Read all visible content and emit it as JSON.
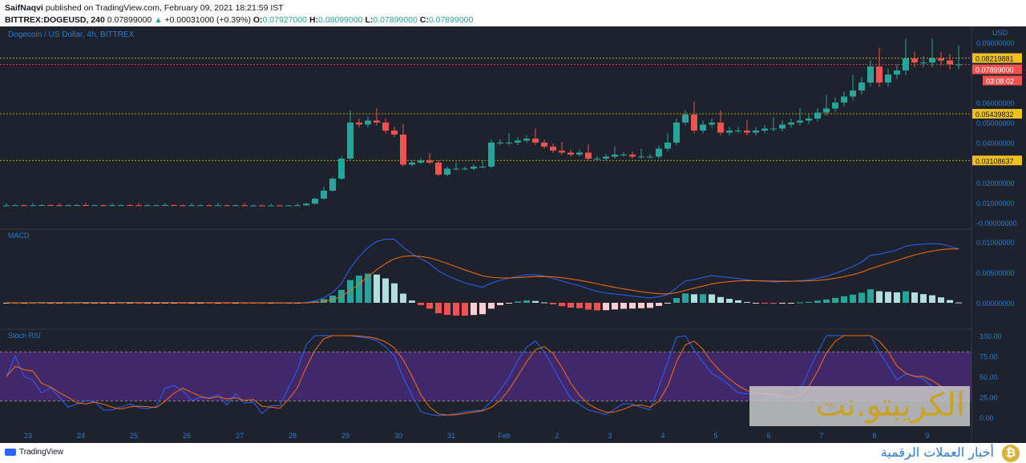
{
  "header": {
    "author": "SaifNaqvi",
    "published": " published on TradingView.com, February 09, 2021 18:21:59 IST",
    "symbol": "BITTREX:DOGEUSD, 240",
    "last": "0.07899000",
    "change": "+0.00031000 (+0.39%)",
    "o_label": "O:",
    "o": "0.07927000",
    "h_label": "H:",
    "h": "0.08099000",
    "l_label": "L:",
    "l": "0.07899000",
    "c_label": "C:",
    "c": "0.07899000"
  },
  "colors": {
    "bg": "#1e222d",
    "up": "#26a69a",
    "down": "#ef5350",
    "axis": "#2a7bd0",
    "macd": "#2962ff",
    "signal": "#ff6d00",
    "stoch_bg": "#4a2a7a",
    "hline": "#f0c020"
  },
  "footer": {
    "logo": "TradingView"
  },
  "watermark": {
    "title": "الكريبتو.نت",
    "subtitle": "أخبار العملات الرقمية"
  },
  "chart_data": {
    "type": "candlestick",
    "title": "Dogecoin / US Dollar, 4h, BITTREX",
    "currency": "USD",
    "price_ticks": [
      "0.09000000",
      "0.06000000",
      "0.05000000",
      "0.04000000",
      "0.02000000",
      "0.01000000",
      "-0.00000000"
    ],
    "price_tick_values": [
      0.09,
      0.06,
      0.05,
      0.04,
      0.02,
      0.01,
      0
    ],
    "horizontal_levels": [
      {
        "value": "0.08219881",
        "kind": "level"
      },
      {
        "value": "0.05439832",
        "kind": "level"
      },
      {
        "value": "0.03108637",
        "kind": "level"
      }
    ],
    "last_price": {
      "value": "0.07899000",
      "countdown": "03:08:02"
    },
    "closes": [
      0.0086,
      0.0087,
      0.0086,
      0.0087,
      0.0088,
      0.0087,
      0.0086,
      0.0087,
      0.0088,
      0.0087,
      0.0087,
      0.0086,
      0.0087,
      0.0088,
      0.0087,
      0.0086,
      0.0087,
      0.0087,
      0.0088,
      0.0087,
      0.0086,
      0.0087,
      0.0087,
      0.0086,
      0.0087,
      0.0086,
      0.0087,
      0.0086,
      0.0086,
      0.0085,
      0.0086,
      0.0085,
      0.0086,
      0.0087,
      0.0095,
      0.012,
      0.016,
      0.022,
      0.032,
      0.05,
      0.049,
      0.051,
      0.05,
      0.046,
      0.044,
      0.029,
      0.03,
      0.031,
      0.03,
      0.024,
      0.027,
      0.027,
      0.027,
      0.028,
      0.028,
      0.04,
      0.04,
      0.04,
      0.041,
      0.042,
      0.04,
      0.038,
      0.036,
      0.035,
      0.034,
      0.035,
      0.032,
      0.032,
      0.033,
      0.034,
      0.034,
      0.033,
      0.033,
      0.033,
      0.037,
      0.04,
      0.05,
      0.054,
      0.046,
      0.049,
      0.05,
      0.045,
      0.046,
      0.046,
      0.045,
      0.046,
      0.047,
      0.047,
      0.049,
      0.05,
      0.051,
      0.052,
      0.055,
      0.057,
      0.06,
      0.063,
      0.066,
      0.07,
      0.078,
      0.07,
      0.074,
      0.076,
      0.082,
      0.08,
      0.08,
      0.082,
      0.081,
      0.079,
      0.079
    ],
    "x_labels": [
      "23",
      "24",
      "25",
      "26",
      "27",
      "28",
      "29",
      "30",
      "31",
      "Feb",
      "2",
      "3",
      "4",
      "5",
      "6",
      "7",
      "8",
      "9"
    ],
    "macd": {
      "label": "MACD",
      "ticks": [
        "0.01000000",
        "0.00500000",
        "0.00000000"
      ],
      "tick_values": [
        0.01,
        0.005,
        0
      ]
    },
    "stoch": {
      "label": "Stoch RSI",
      "ticks": [
        "100.00",
        "75.00",
        "50.00",
        "25.00",
        "0.00"
      ],
      "tick_values": [
        100,
        75,
        50,
        25,
        0
      ],
      "band": [
        20,
        80
      ]
    }
  }
}
